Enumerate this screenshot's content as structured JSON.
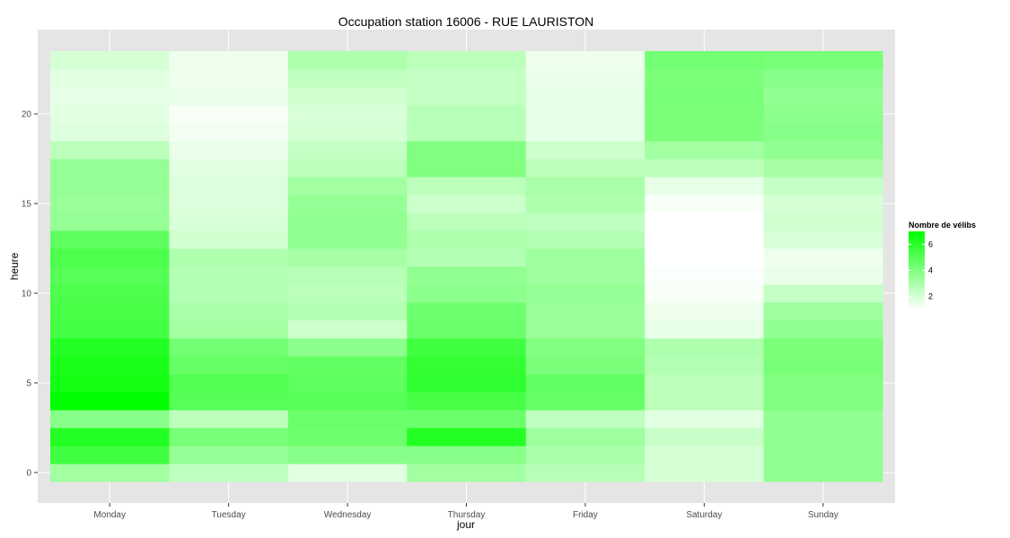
{
  "chart_data": {
    "type": "heatmap",
    "title": "Occupation station 16006 - RUE LAURISTON",
    "xlabel": "jour",
    "ylabel": "heure",
    "x_categories": [
      "Monday",
      "Tuesday",
      "Wednesday",
      "Thursday",
      "Friday",
      "Saturday",
      "Sunday"
    ],
    "y_range": [
      0,
      23
    ],
    "y_ticks": [
      0,
      5,
      10,
      15,
      20
    ],
    "value_range": [
      1,
      7
    ],
    "color_low": "#ffffff",
    "color_high": "#00ff00",
    "background": "#e5e5e5",
    "grid": true,
    "legend": {
      "title": "Nombre de vélibs",
      "position": "right",
      "ticks": [
        2,
        4,
        6
      ]
    },
    "values": {
      "Monday": [
        3.2,
        5.5,
        6.2,
        3.8,
        7.0,
        6.5,
        6.4,
        6.2,
        5.4,
        5.3,
        5.2,
        5.0,
        5.2,
        4.8,
        3.5,
        3.4,
        3.5,
        3.5,
        2.6,
        1.8,
        1.7,
        1.6,
        1.7,
        2.0
      ],
      "Tuesday": [
        2.5,
        3.5,
        4.2,
        2.6,
        5.0,
        5.1,
        4.6,
        4.3,
        3.2,
        3.0,
        2.8,
        2.8,
        2.9,
        2.1,
        1.9,
        1.8,
        1.8,
        1.7,
        1.5,
        1.3,
        1.2,
        1.5,
        1.4,
        1.4
      ],
      "Wednesday": [
        1.7,
        3.8,
        4.4,
        4.5,
        4.9,
        4.8,
        4.7,
        3.7,
        2.2,
        2.8,
        2.6,
        2.7,
        3.1,
        3.6,
        3.6,
        3.5,
        3.2,
        2.6,
        2.4,
        2.0,
        1.9,
        2.1,
        2.5,
        2.9
      ],
      "Thursday": [
        3.2,
        3.8,
        6.2,
        4.5,
        5.3,
        5.9,
        5.8,
        5.5,
        4.5,
        4.4,
        3.7,
        3.6,
        2.8,
        2.9,
        2.6,
        2.2,
        2.6,
        4.0,
        4.0,
        2.7,
        2.7,
        2.4,
        2.4,
        2.6
      ],
      "Friday": [
        2.7,
        3.0,
        3.3,
        2.5,
        4.6,
        4.7,
        4.1,
        4.0,
        3.4,
        3.4,
        3.5,
        3.3,
        3.3,
        2.8,
        2.5,
        2.9,
        3.0,
        2.6,
        2.2,
        1.6,
        1.6,
        1.6,
        1.5,
        1.4
      ],
      "Saturday": [
        2.0,
        2.0,
        2.3,
        1.7,
        2.6,
        2.6,
        2.8,
        2.9,
        1.6,
        1.4,
        1.2,
        1.1,
        1.0,
        1.0,
        1.0,
        1.2,
        1.6,
        2.6,
        3.2,
        4.1,
        4.1,
        4.2,
        4.1,
        4.3
      ],
      "Sunday": [
        3.6,
        3.6,
        3.6,
        3.6,
        4.0,
        4.0,
        4.2,
        4.1,
        3.6,
        3.3,
        2.4,
        1.5,
        1.4,
        1.9,
        2.1,
        2.0,
        2.4,
        3.1,
        3.6,
        3.8,
        3.7,
        3.6,
        3.8,
        4.2
      ]
    }
  }
}
